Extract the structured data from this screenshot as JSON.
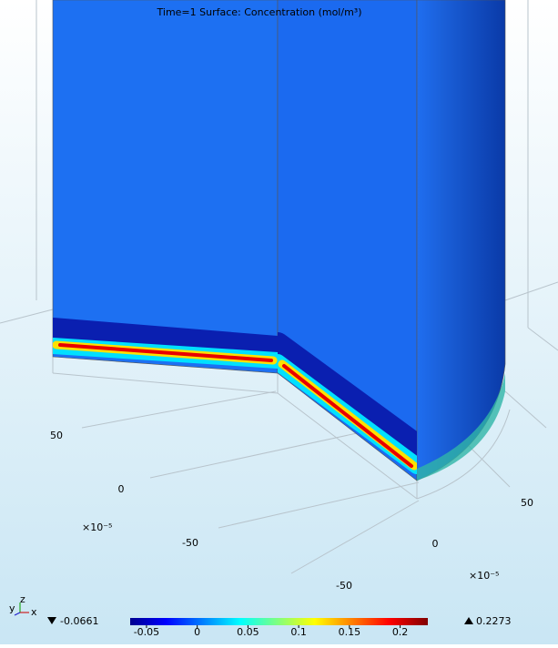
{
  "chart_data": {
    "type": "surface3d",
    "title": "Time=1  Surface: Concentration (mol/m³)",
    "axis1_ticks": [
      50,
      0,
      -50
    ],
    "axis2_ticks": [
      50,
      0,
      -50
    ],
    "axis_multiplier": "×10⁻⁵",
    "axis_triad": {
      "y": "y",
      "z": "z",
      "x": "x"
    },
    "colorbar": {
      "min": -0.0661,
      "max": 0.2273,
      "ticks": [
        -0.05,
        0,
        0.05,
        0.1,
        0.15,
        0.2
      ],
      "min_label": "-0.0661",
      "max_label": "0.2273"
    }
  }
}
